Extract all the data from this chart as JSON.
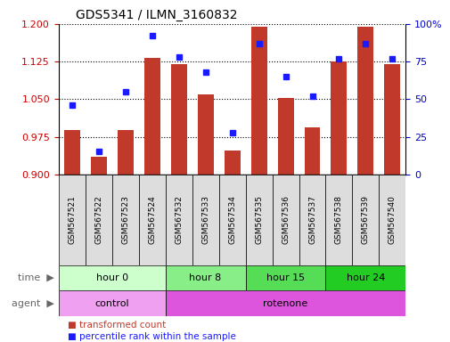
{
  "title": "GDS5341 / ILMN_3160832",
  "samples": [
    "GSM567521",
    "GSM567522",
    "GSM567523",
    "GSM567524",
    "GSM567532",
    "GSM567533",
    "GSM567534",
    "GSM567535",
    "GSM567536",
    "GSM567537",
    "GSM567538",
    "GSM567539",
    "GSM567540"
  ],
  "bar_values": [
    0.988,
    0.935,
    0.988,
    1.132,
    1.12,
    1.06,
    0.948,
    1.195,
    1.052,
    0.993,
    1.125,
    1.195,
    1.12
  ],
  "dot_values": [
    46,
    15,
    55,
    92,
    78,
    68,
    28,
    87,
    65,
    52,
    77,
    87,
    77
  ],
  "ylim": [
    0.9,
    1.2
  ],
  "y_ticks": [
    0.9,
    0.975,
    1.05,
    1.125,
    1.2
  ],
  "y2_ticks": [
    0,
    25,
    50,
    75,
    100
  ],
  "bar_color": "#c0392b",
  "dot_color": "#1a1aff",
  "time_groups": [
    {
      "label": "hour 0",
      "start": 0,
      "end": 4,
      "color": "#ccffcc"
    },
    {
      "label": "hour 8",
      "start": 4,
      "end": 7,
      "color": "#88ee88"
    },
    {
      "label": "hour 15",
      "start": 7,
      "end": 10,
      "color": "#55dd55"
    },
    {
      "label": "hour 24",
      "start": 10,
      "end": 13,
      "color": "#22cc22"
    }
  ],
  "agent_groups": [
    {
      "label": "control",
      "start": 0,
      "end": 4,
      "color": "#f0a0f0"
    },
    {
      "label": "rotenone",
      "start": 4,
      "end": 13,
      "color": "#dd55dd"
    }
  ],
  "time_label": "time",
  "agent_label": "agent",
  "legend_bar": "transformed count",
  "legend_dot": "percentile rank within the sample",
  "tick_label_color": "#cc0000",
  "right_axis_color": "#0000cc",
  "sample_box_color": "#dddddd"
}
